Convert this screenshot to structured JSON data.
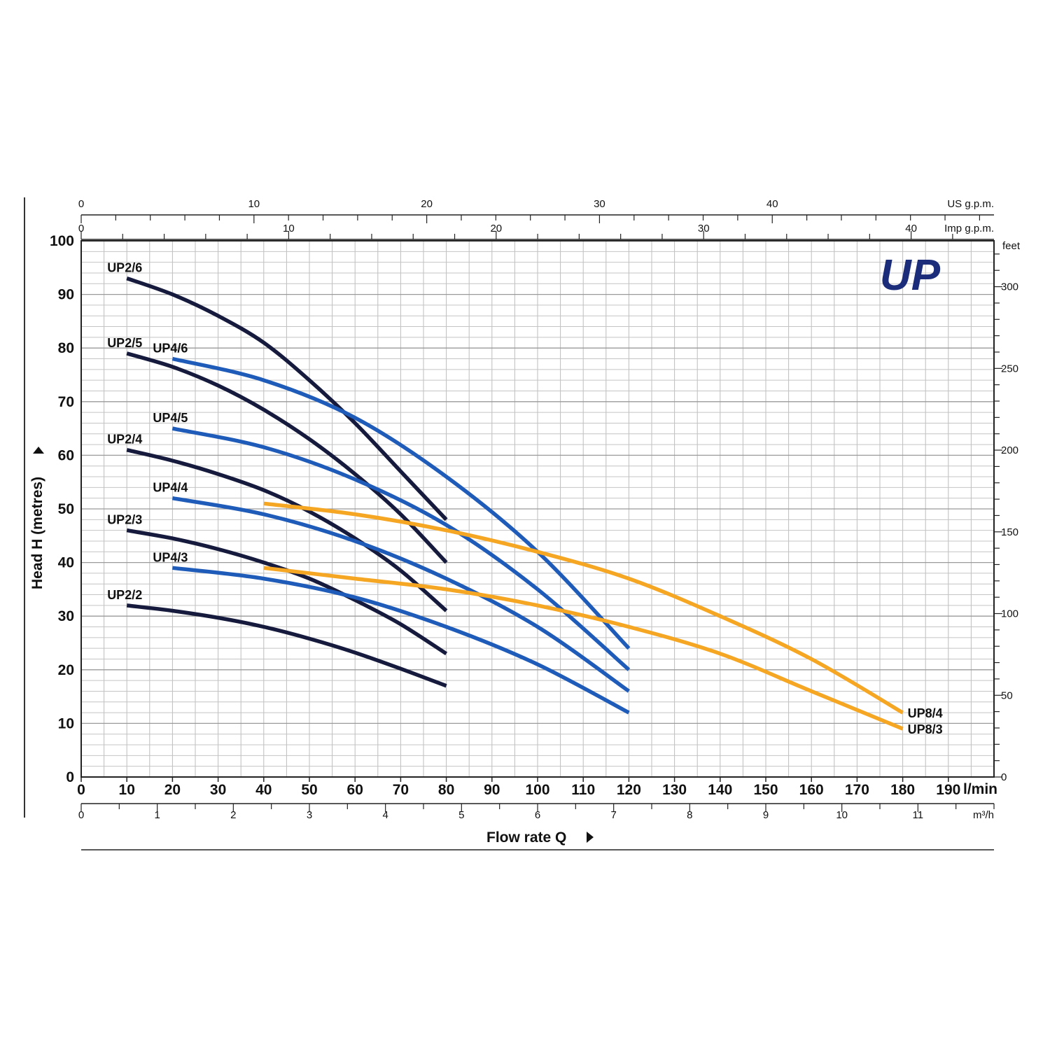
{
  "chart_data": {
    "type": "line",
    "title": "",
    "xlabel": "Flow rate Q",
    "ylabel": "Head H (metres)",
    "xlim": [
      0,
      200
    ],
    "ylim": [
      0,
      100
    ],
    "grid": true,
    "x_unit": "l/min",
    "x_ticks": [
      0,
      10,
      20,
      30,
      40,
      50,
      60,
      70,
      80,
      90,
      100,
      110,
      120,
      130,
      140,
      150,
      160,
      170,
      180,
      190
    ],
    "y_ticks": [
      0,
      10,
      20,
      30,
      40,
      50,
      60,
      70,
      80,
      90,
      100
    ],
    "secondary_axes": {
      "us_gpm": {
        "unit": "US g.p.m.",
        "ticks": [
          0,
          10,
          20,
          30,
          40
        ]
      },
      "imp_gpm": {
        "unit": "Imp g.p.m.",
        "ticks": [
          0,
          10,
          20,
          30,
          40
        ]
      },
      "m3h": {
        "unit": "m³/h",
        "ticks": [
          0,
          1,
          2,
          3,
          4,
          5,
          6,
          7,
          8,
          9,
          10,
          11
        ]
      },
      "feet": {
        "unit": "feet",
        "ticks": [
          0,
          50,
          100,
          150,
          200,
          250,
          300
        ]
      }
    },
    "series": [
      {
        "name": "UP2/6",
        "color": "#161b3d",
        "x": [
          10,
          20,
          30,
          40,
          50,
          60,
          70,
          80
        ],
        "y": [
          93,
          90,
          86,
          81,
          74,
          66,
          57,
          48
        ]
      },
      {
        "name": "UP2/5",
        "color": "#161b3d",
        "x": [
          10,
          20,
          30,
          40,
          50,
          60,
          70,
          80
        ],
        "y": [
          79,
          76.5,
          73,
          68.5,
          63,
          56.5,
          49,
          40
        ]
      },
      {
        "name": "UP2/4",
        "color": "#161b3d",
        "x": [
          10,
          20,
          30,
          40,
          50,
          60,
          70,
          80
        ],
        "y": [
          61,
          59,
          56.5,
          53.5,
          49.5,
          44.5,
          38.5,
          31
        ]
      },
      {
        "name": "UP2/3",
        "color": "#161b3d",
        "x": [
          10,
          20,
          30,
          40,
          50,
          60,
          70,
          80
        ],
        "y": [
          46,
          44.5,
          42.5,
          40,
          37,
          33,
          28.5,
          23
        ]
      },
      {
        "name": "UP2/2",
        "color": "#161b3d",
        "x": [
          10,
          20,
          30,
          40,
          50,
          60,
          70,
          80
        ],
        "y": [
          32,
          31,
          29.7,
          28,
          25.8,
          23.2,
          20.2,
          17
        ]
      },
      {
        "name": "UP4/6",
        "color": "#1f5bb8",
        "x": [
          20,
          40,
          60,
          80,
          100,
          120
        ],
        "y": [
          78,
          74,
          67,
          56,
          42,
          24
        ]
      },
      {
        "name": "UP4/5",
        "color": "#1f5bb8",
        "x": [
          20,
          40,
          60,
          80,
          100,
          120
        ],
        "y": [
          65,
          61.5,
          55.5,
          47,
          35,
          20
        ]
      },
      {
        "name": "UP4/4",
        "color": "#1f5bb8",
        "x": [
          20,
          40,
          60,
          80,
          100,
          120
        ],
        "y": [
          52,
          49,
          44,
          37,
          28,
          16
        ]
      },
      {
        "name": "UP4/3",
        "color": "#1f5bb8",
        "x": [
          20,
          40,
          60,
          80,
          100,
          120
        ],
        "y": [
          39,
          37,
          33.5,
          28,
          21,
          12
        ]
      },
      {
        "name": "UP8/4",
        "color": "#f5a623",
        "x": [
          40,
          60,
          80,
          100,
          120,
          140,
          160,
          180
        ],
        "y": [
          51,
          49,
          46,
          42,
          37,
          30,
          22,
          12
        ]
      },
      {
        "name": "UP8/3",
        "color": "#f5a623",
        "x": [
          40,
          60,
          80,
          100,
          120,
          140,
          160,
          180
        ],
        "y": [
          39,
          37,
          35,
          32,
          28,
          23,
          16,
          9
        ]
      }
    ]
  },
  "brand": {
    "logo_text": "UP",
    "logo_color": "#1b2c7a"
  }
}
